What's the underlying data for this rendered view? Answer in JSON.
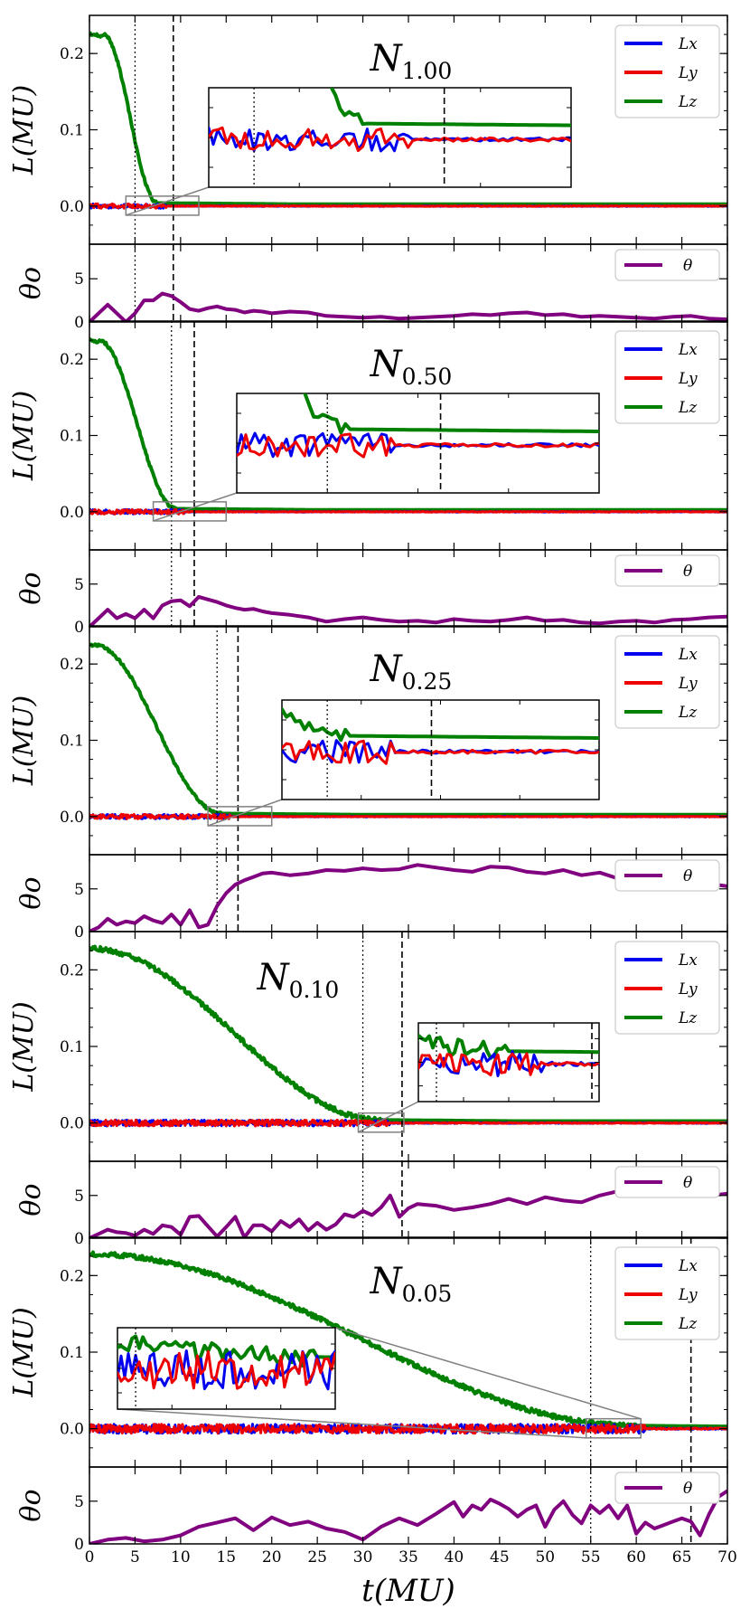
{
  "chart_data": {
    "type": "line",
    "x": {
      "label": "t(MU)",
      "range": [
        0,
        70
      ],
      "ticks": [
        0,
        5,
        10,
        15,
        20,
        25,
        30,
        35,
        40,
        45,
        50,
        55,
        60,
        65,
        70
      ]
    },
    "colors": {
      "Lx": "#0000ee",
      "Ly": "#ee0000",
      "Lz": "#008000",
      "theta": "#800080",
      "inset_box": "#808080"
    },
    "panels": [
      {
        "id": "n100",
        "title_main": "N",
        "title_sub": "1.00",
        "L": {
          "ylabel": "L(MU)",
          "ylim": [
            -0.05,
            0.25
          ],
          "yticks": [
            0.0,
            0.1,
            0.2
          ],
          "tick_labels": [
            "0.0",
            "0.1",
            "0.2"
          ],
          "legend": [
            "Lx",
            "Ly",
            "Lz"
          ],
          "Lz_start": 0.225,
          "Lz_drop_start": 1.5,
          "Lz_drop_end": 7.5,
          "noise": 0.003
        },
        "theta": {
          "ylabel": "θo",
          "ylim": [
            0,
            9
          ],
          "yticks": [
            0,
            5
          ],
          "tick_labels": [
            "0",
            "5"
          ],
          "legend": "θ",
          "x": [
            0,
            1,
            2,
            3,
            4,
            5,
            6,
            7,
            8,
            9,
            10,
            11,
            12,
            13,
            14,
            15,
            16,
            17,
            18,
            19,
            20,
            22,
            24,
            26,
            28,
            30,
            32,
            34,
            36,
            38,
            40,
            42,
            44,
            46,
            48,
            50,
            52,
            54,
            56,
            58,
            60,
            62,
            64,
            66,
            68,
            70
          ],
          "y": [
            0,
            1,
            2,
            1,
            0,
            1,
            2.5,
            2.5,
            3.3,
            3,
            2.3,
            1.5,
            1.3,
            1.6,
            1.8,
            1.5,
            1.4,
            1.1,
            1.3,
            1.2,
            1.0,
            1.2,
            1.1,
            0.7,
            0.6,
            0.5,
            0.6,
            0.4,
            0.5,
            0.6,
            0.7,
            0.9,
            0.8,
            1.0,
            1.1,
            0.8,
            0.9,
            0.6,
            0.7,
            0.6,
            0.5,
            0.4,
            0.6,
            0.7,
            0.4,
            0.3
          ]
        },
        "vlines": {
          "dotted": 5.0,
          "dashed": 9.2
        },
        "zoom_box": {
          "x": [
            4.0,
            12.0
          ],
          "y": [
            -0.012,
            0.013
          ]
        }
      },
      {
        "id": "n050",
        "title_main": "N",
        "title_sub": "0.50",
        "L": {
          "ylabel": "L(MU)",
          "ylim": [
            -0.05,
            0.25
          ],
          "yticks": [
            0.0,
            0.1,
            0.2
          ],
          "tick_labels": [
            "0.0",
            "0.1",
            "0.2"
          ],
          "legend": [
            "Lx",
            "Ly",
            "Lz"
          ],
          "Lz_start": 0.225,
          "Lz_drop_start": 1.0,
          "Lz_drop_end": 9.5,
          "noise": 0.003
        },
        "theta": {
          "ylabel": "θo",
          "ylim": [
            0,
            9
          ],
          "yticks": [
            0,
            5
          ],
          "tick_labels": [
            "0",
            "5"
          ],
          "legend": "θ",
          "x": [
            0,
            1,
            2,
            3,
            4,
            5,
            6,
            7,
            8,
            9,
            10,
            11,
            12,
            13,
            14,
            15,
            16,
            17,
            18,
            19,
            20,
            22,
            24,
            26,
            28,
            30,
            32,
            34,
            36,
            38,
            40,
            42,
            44,
            46,
            48,
            50,
            52,
            54,
            56,
            58,
            60,
            62,
            64,
            66,
            68,
            70
          ],
          "y": [
            0,
            1,
            2,
            1,
            1.5,
            1,
            2,
            1,
            2.5,
            3,
            3.1,
            2.4,
            3.5,
            3.2,
            2.9,
            2.5,
            2.2,
            2.0,
            2.1,
            1.8,
            1.6,
            1.4,
            1.1,
            0.6,
            0.9,
            1.1,
            0.8,
            0.6,
            0.7,
            0.5,
            0.9,
            0.7,
            0.6,
            0.8,
            1.1,
            0.7,
            0.8,
            0.5,
            0.4,
            0.6,
            0.7,
            0.5,
            0.8,
            0.9,
            1.1,
            1.2
          ]
        },
        "vlines": {
          "dotted": 9.0,
          "dashed": 11.5
        },
        "zoom_box": {
          "x": [
            7.0,
            15.0
          ],
          "y": [
            -0.012,
            0.013
          ]
        }
      },
      {
        "id": "n025",
        "title_main": "N",
        "title_sub": "0.25",
        "L": {
          "ylabel": "L(MU)",
          "ylim": [
            -0.05,
            0.25
          ],
          "yticks": [
            0.0,
            0.1,
            0.2
          ],
          "tick_labels": [
            "0.0",
            "0.1",
            "0.2"
          ],
          "legend": [
            "Lx",
            "Ly",
            "Lz"
          ],
          "Lz_start": 0.225,
          "Lz_drop_start": 0.5,
          "Lz_drop_end": 14.5,
          "noise": 0.003
        },
        "theta": {
          "ylabel": "θo",
          "ylim": [
            0,
            9
          ],
          "yticks": [
            0,
            5
          ],
          "tick_labels": [
            "0",
            "5"
          ],
          "legend": "θ",
          "x": [
            0,
            1,
            2,
            3,
            4,
            5,
            6,
            7,
            8,
            9,
            10,
            11,
            12,
            13,
            14,
            15,
            16,
            17,
            18,
            19,
            20,
            22,
            24,
            26,
            28,
            30,
            32,
            34,
            36,
            38,
            40,
            42,
            44,
            46,
            48,
            50,
            52,
            54,
            56,
            58,
            60,
            62,
            64,
            66,
            68,
            70
          ],
          "y": [
            0,
            0.5,
            1.5,
            0.8,
            1.2,
            1.0,
            1.8,
            1.3,
            1.0,
            2.0,
            0.8,
            2.5,
            0.5,
            0.8,
            3.0,
            4.5,
            5.5,
            6.0,
            6.4,
            6.8,
            6.9,
            6.6,
            6.8,
            7.2,
            7.1,
            7.4,
            7.2,
            7.3,
            7.8,
            7.5,
            7.2,
            7.0,
            7.6,
            7.5,
            7.0,
            6.8,
            7.2,
            6.6,
            6.9,
            6.2,
            6.0,
            5.8,
            6.1,
            5.9,
            5.6,
            5.3
          ]
        },
        "vlines": {
          "dotted": 14.0,
          "dashed": 16.3
        },
        "zoom_box": {
          "x": [
            13.0,
            20.0
          ],
          "y": [
            -0.012,
            0.013
          ]
        }
      },
      {
        "id": "n010",
        "title_main": "N",
        "title_sub": "0.10",
        "L": {
          "ylabel": "L(MU)",
          "ylim": [
            -0.05,
            0.25
          ],
          "yticks": [
            0.0,
            0.1,
            0.2
          ],
          "tick_labels": [
            "0.0",
            "0.1",
            "0.2"
          ],
          "legend": [
            "Lx",
            "Ly",
            "Lz"
          ],
          "Lz_start": 0.228,
          "Lz_drop_start": 0.0,
          "Lz_drop_end": 32.0,
          "noise": 0.004
        },
        "theta": {
          "ylabel": "θo",
          "ylim": [
            0,
            9
          ],
          "yticks": [
            0,
            5
          ],
          "tick_labels": [
            "0",
            "5"
          ],
          "legend": "θ",
          "x": [
            0,
            1,
            2,
            3,
            4,
            5,
            6,
            7,
            8,
            9,
            10,
            11,
            12,
            13,
            14,
            15,
            16,
            17,
            18,
            19,
            20,
            21,
            22,
            23,
            24,
            25,
            26,
            27,
            28,
            29,
            30,
            31,
            32,
            33,
            34,
            35,
            36,
            38,
            40,
            42,
            44,
            46,
            48,
            50,
            52,
            54,
            56,
            58,
            60,
            62,
            64,
            66,
            68,
            70
          ],
          "y": [
            0,
            0.5,
            1.0,
            0.7,
            0.6,
            0.3,
            1.0,
            0.5,
            1.5,
            1.3,
            0.4,
            2.5,
            2.6,
            1.4,
            0.2,
            1.3,
            2.5,
            0.1,
            1.5,
            1.5,
            0.8,
            2.0,
            1.3,
            2.2,
            0.9,
            1.8,
            1.0,
            1.6,
            2.8,
            2.5,
            3.2,
            2.7,
            3.6,
            5.0,
            2.5,
            3.5,
            4.0,
            3.8,
            3.3,
            3.6,
            4.0,
            4.6,
            4.0,
            4.8,
            4.4,
            4.2,
            5.0,
            5.5,
            5.2,
            5.8,
            5.4,
            5.6,
            5.0,
            5.2
          ]
        },
        "vlines": {
          "dotted": 30.0,
          "dashed": 34.3
        },
        "zoom_box": {
          "x": [
            29.5,
            34.5
          ],
          "y": [
            -0.012,
            0.013
          ]
        }
      },
      {
        "id": "n005",
        "title_main": "N",
        "title_sub": "0.05",
        "L": {
          "ylabel": "L(MU)",
          "ylim": [
            -0.05,
            0.25
          ],
          "yticks": [
            0.0,
            0.1,
            0.2
          ],
          "tick_labels": [
            "0.0",
            "0.1",
            "0.2"
          ],
          "legend": [
            "Lx",
            "Ly",
            "Lz"
          ],
          "Lz_start": 0.228,
          "Lz_drop_start": 0.0,
          "Lz_drop_end": 60.0,
          "noise": 0.006
        },
        "theta": {
          "ylabel": "θo",
          "ylim": [
            0,
            9
          ],
          "yticks": [
            0,
            5
          ],
          "tick_labels": [
            "0",
            "5"
          ],
          "legend": "θ",
          "x": [
            0,
            2,
            4,
            6,
            8,
            10,
            12,
            14,
            16,
            18,
            20,
            22,
            24,
            26,
            28,
            30,
            32,
            34,
            36,
            38,
            40,
            41,
            42,
            43,
            44,
            45,
            46,
            47,
            48,
            49,
            50,
            51,
            52,
            53,
            54,
            55,
            56,
            57,
            58,
            59,
            60,
            61,
            62,
            63,
            64,
            65,
            66,
            67,
            68,
            69,
            70
          ],
          "y": [
            0,
            0.5,
            0.7,
            0.3,
            0.5,
            1.0,
            2.0,
            2.5,
            3.0,
            1.6,
            3.1,
            2.2,
            2.6,
            1.8,
            1.4,
            0.5,
            2.0,
            3.0,
            2.2,
            3.5,
            4.9,
            3.2,
            4.5,
            4.0,
            5.2,
            4.7,
            4.1,
            3.2,
            4.0,
            4.5,
            2.0,
            4.0,
            5.0,
            3.4,
            2.4,
            4.5,
            3.6,
            4.5,
            3.0,
            4.5,
            1.2,
            2.5,
            1.8,
            2.2,
            2.6,
            3.0,
            2.6,
            1.0,
            3.5,
            5.5,
            6.2
          ]
        },
        "vlines": {
          "dotted": 55.0,
          "dashed": 66.0
        },
        "zoom_box": {
          "x": [
            54.5,
            60.5
          ],
          "y": [
            -0.012,
            0.013
          ]
        }
      }
    ]
  }
}
